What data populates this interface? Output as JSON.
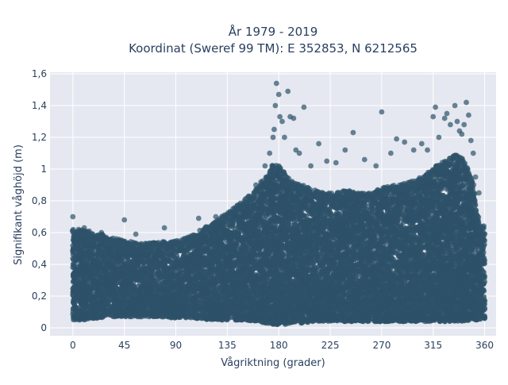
{
  "chart_data": {
    "type": "scatter",
    "title_line1": "År 1979 - 2019",
    "title_line2": "Koordinat (Sweref 99 TM): E 352853, N 6212565",
    "xlabel": "Vågriktning (grader)",
    "ylabel": "Signifikant våghöjd (m)",
    "xlim": [
      -20,
      370
    ],
    "ylim": [
      -0.05,
      1.61
    ],
    "x_ticks": [
      0,
      45,
      90,
      135,
      180,
      225,
      270,
      315,
      360
    ],
    "x_tick_labels": [
      "0",
      "45",
      "90",
      "135",
      "180",
      "225",
      "270",
      "315",
      "360"
    ],
    "y_ticks": [
      0,
      0.2,
      0.4,
      0.6,
      0.8,
      1.0,
      1.2,
      1.4,
      1.6
    ],
    "y_tick_labels": [
      "0",
      "0,2",
      "0,4",
      "0,6",
      "0,8",
      "1",
      "1,2",
      "1,4",
      "1,6"
    ],
    "grid": true,
    "marker_color": "#2d5269",
    "plot_bg": "#e5e8f0",
    "envelope": {
      "x": [
        0,
        10,
        20,
        30,
        45,
        60,
        75,
        90,
        100,
        110,
        120,
        130,
        140,
        150,
        160,
        170,
        175,
        180,
        185,
        190,
        200,
        210,
        220,
        230,
        240,
        250,
        260,
        270,
        280,
        290,
        300,
        310,
        315,
        320,
        330,
        335,
        340,
        345,
        350,
        355,
        360
      ],
      "y_min": [
        0.05,
        0.05,
        0.06,
        0.07,
        0.07,
        0.07,
        0.07,
        0.06,
        0.06,
        0.06,
        0.05,
        0.05,
        0.05,
        0.05,
        0.04,
        0.03,
        0.02,
        0.02,
        0.02,
        0.03,
        0.03,
        0.04,
        0.04,
        0.04,
        0.04,
        0.04,
        0.04,
        0.04,
        0.04,
        0.04,
        0.04,
        0.04,
        0.04,
        0.04,
        0.04,
        0.04,
        0.04,
        0.04,
        0.05,
        0.05,
        0.06
      ],
      "y_max": [
        0.57,
        0.57,
        0.55,
        0.53,
        0.5,
        0.48,
        0.49,
        0.5,
        0.52,
        0.56,
        0.6,
        0.65,
        0.7,
        0.76,
        0.82,
        0.92,
        0.98,
        0.97,
        0.92,
        0.88,
        0.85,
        0.82,
        0.8,
        0.8,
        0.82,
        0.8,
        0.8,
        0.83,
        0.85,
        0.86,
        0.88,
        0.92,
        0.96,
        0.98,
        1.02,
        1.04,
        1.02,
        0.97,
        0.85,
        0.62,
        0.58
      ]
    },
    "outliers": [
      {
        "x": 0,
        "y": 0.7
      },
      {
        "x": 5,
        "y": 0.62
      },
      {
        "x": 10,
        "y": 0.63
      },
      {
        "x": 25,
        "y": 0.6
      },
      {
        "x": 45,
        "y": 0.68
      },
      {
        "x": 55,
        "y": 0.59
      },
      {
        "x": 80,
        "y": 0.63
      },
      {
        "x": 110,
        "y": 0.69
      },
      {
        "x": 125,
        "y": 0.7
      },
      {
        "x": 140,
        "y": 0.75
      },
      {
        "x": 150,
        "y": 0.8
      },
      {
        "x": 160,
        "y": 0.9
      },
      {
        "x": 168,
        "y": 1.02
      },
      {
        "x": 172,
        "y": 1.1
      },
      {
        "x": 175,
        "y": 1.2
      },
      {
        "x": 176,
        "y": 1.25
      },
      {
        "x": 177,
        "y": 1.4
      },
      {
        "x": 178,
        "y": 1.54
      },
      {
        "x": 180,
        "y": 1.47
      },
      {
        "x": 181,
        "y": 1.33
      },
      {
        "x": 183,
        "y": 1.3
      },
      {
        "x": 185,
        "y": 1.2
      },
      {
        "x": 188,
        "y": 1.49
      },
      {
        "x": 190,
        "y": 1.33
      },
      {
        "x": 193,
        "y": 1.32
      },
      {
        "x": 195,
        "y": 1.12
      },
      {
        "x": 198,
        "y": 1.1
      },
      {
        "x": 202,
        "y": 1.39
      },
      {
        "x": 208,
        "y": 1.02
      },
      {
        "x": 215,
        "y": 1.16
      },
      {
        "x": 222,
        "y": 1.05
      },
      {
        "x": 230,
        "y": 1.04
      },
      {
        "x": 238,
        "y": 1.12
      },
      {
        "x": 245,
        "y": 1.23
      },
      {
        "x": 255,
        "y": 1.06
      },
      {
        "x": 265,
        "y": 1.02
      },
      {
        "x": 270,
        "y": 1.36
      },
      {
        "x": 278,
        "y": 1.1
      },
      {
        "x": 283,
        "y": 1.19
      },
      {
        "x": 290,
        "y": 1.17
      },
      {
        "x": 298,
        "y": 1.12
      },
      {
        "x": 305,
        "y": 1.16
      },
      {
        "x": 310,
        "y": 1.12
      },
      {
        "x": 315,
        "y": 1.33
      },
      {
        "x": 317,
        "y": 1.39
      },
      {
        "x": 320,
        "y": 1.2
      },
      {
        "x": 325,
        "y": 1.32
      },
      {
        "x": 327,
        "y": 1.35
      },
      {
        "x": 330,
        "y": 1.28
      },
      {
        "x": 334,
        "y": 1.4
      },
      {
        "x": 336,
        "y": 1.3
      },
      {
        "x": 338,
        "y": 1.24
      },
      {
        "x": 340,
        "y": 1.22
      },
      {
        "x": 342,
        "y": 1.28
      },
      {
        "x": 344,
        "y": 1.42
      },
      {
        "x": 346,
        "y": 1.34
      },
      {
        "x": 348,
        "y": 1.18
      },
      {
        "x": 350,
        "y": 1.1
      },
      {
        "x": 352,
        "y": 0.95
      },
      {
        "x": 355,
        "y": 0.85
      }
    ]
  }
}
